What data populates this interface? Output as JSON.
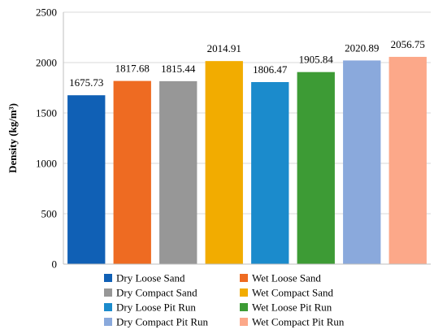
{
  "chart_data": {
    "type": "bar",
    "title": "",
    "xlabel": "",
    "ylabel": "Density (kg/m³)",
    "ylim": [
      0,
      2500
    ],
    "yticks": [
      0,
      500,
      1000,
      1500,
      2000,
      2500
    ],
    "grid": "y-major",
    "legend_position": "bottom",
    "series": [
      {
        "name": "Dry Loose Sand",
        "value": 1675.73,
        "label": "1675.73",
        "color": "#1060b5"
      },
      {
        "name": "Wet Loose Sand",
        "value": 1817.68,
        "label": "1817.68",
        "color": "#ee6b22"
      },
      {
        "name": "Dry Compact Sand",
        "value": 1815.44,
        "label": "1815.44",
        "color": "#979797"
      },
      {
        "name": "Wet Compact Sand",
        "value": 2014.91,
        "label": "2014.91",
        "color": "#f2ac00"
      },
      {
        "name": "Dry Loose Pit Run",
        "value": 1806.47,
        "label": "1806.47",
        "color": "#1b8bcc"
      },
      {
        "name": "Wet Loose Pit Run",
        "value": 1905.84,
        "label": "1905.84",
        "color": "#3d9b35"
      },
      {
        "name": "Dry Compact Pit Run",
        "value": 2020.89,
        "label": "2020.89",
        "color": "#8aa9dc"
      },
      {
        "name": "Wet Compact Pit Run",
        "value": 2056.75,
        "label": "2056.75",
        "color": "#fca889"
      }
    ]
  }
}
